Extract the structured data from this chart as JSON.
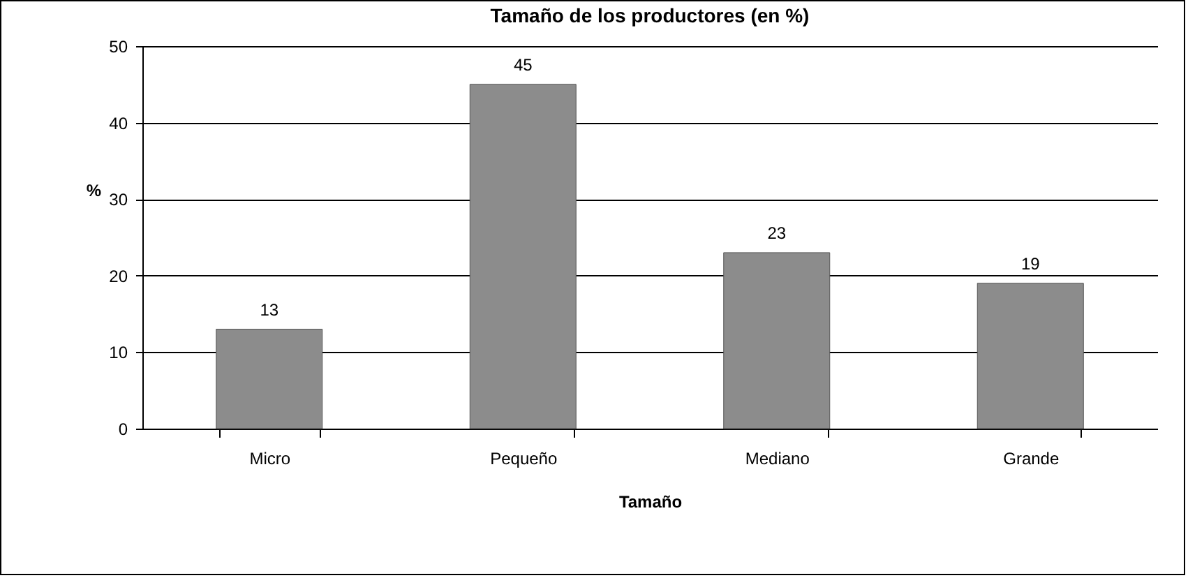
{
  "chart_data": {
    "type": "bar",
    "title": "Tamaño de los productores (en %)",
    "xlabel": "Tamaño",
    "ylabel": "%",
    "categories": [
      "Micro",
      "Pequeño",
      "Mediano",
      "Grande"
    ],
    "values": [
      13,
      45,
      23,
      19
    ],
    "color": "#8c8c8c",
    "ylim": [
      0,
      50
    ],
    "yticks": [
      0,
      10,
      20,
      30,
      40,
      50
    ],
    "grid": "y",
    "data_labels": true
  }
}
